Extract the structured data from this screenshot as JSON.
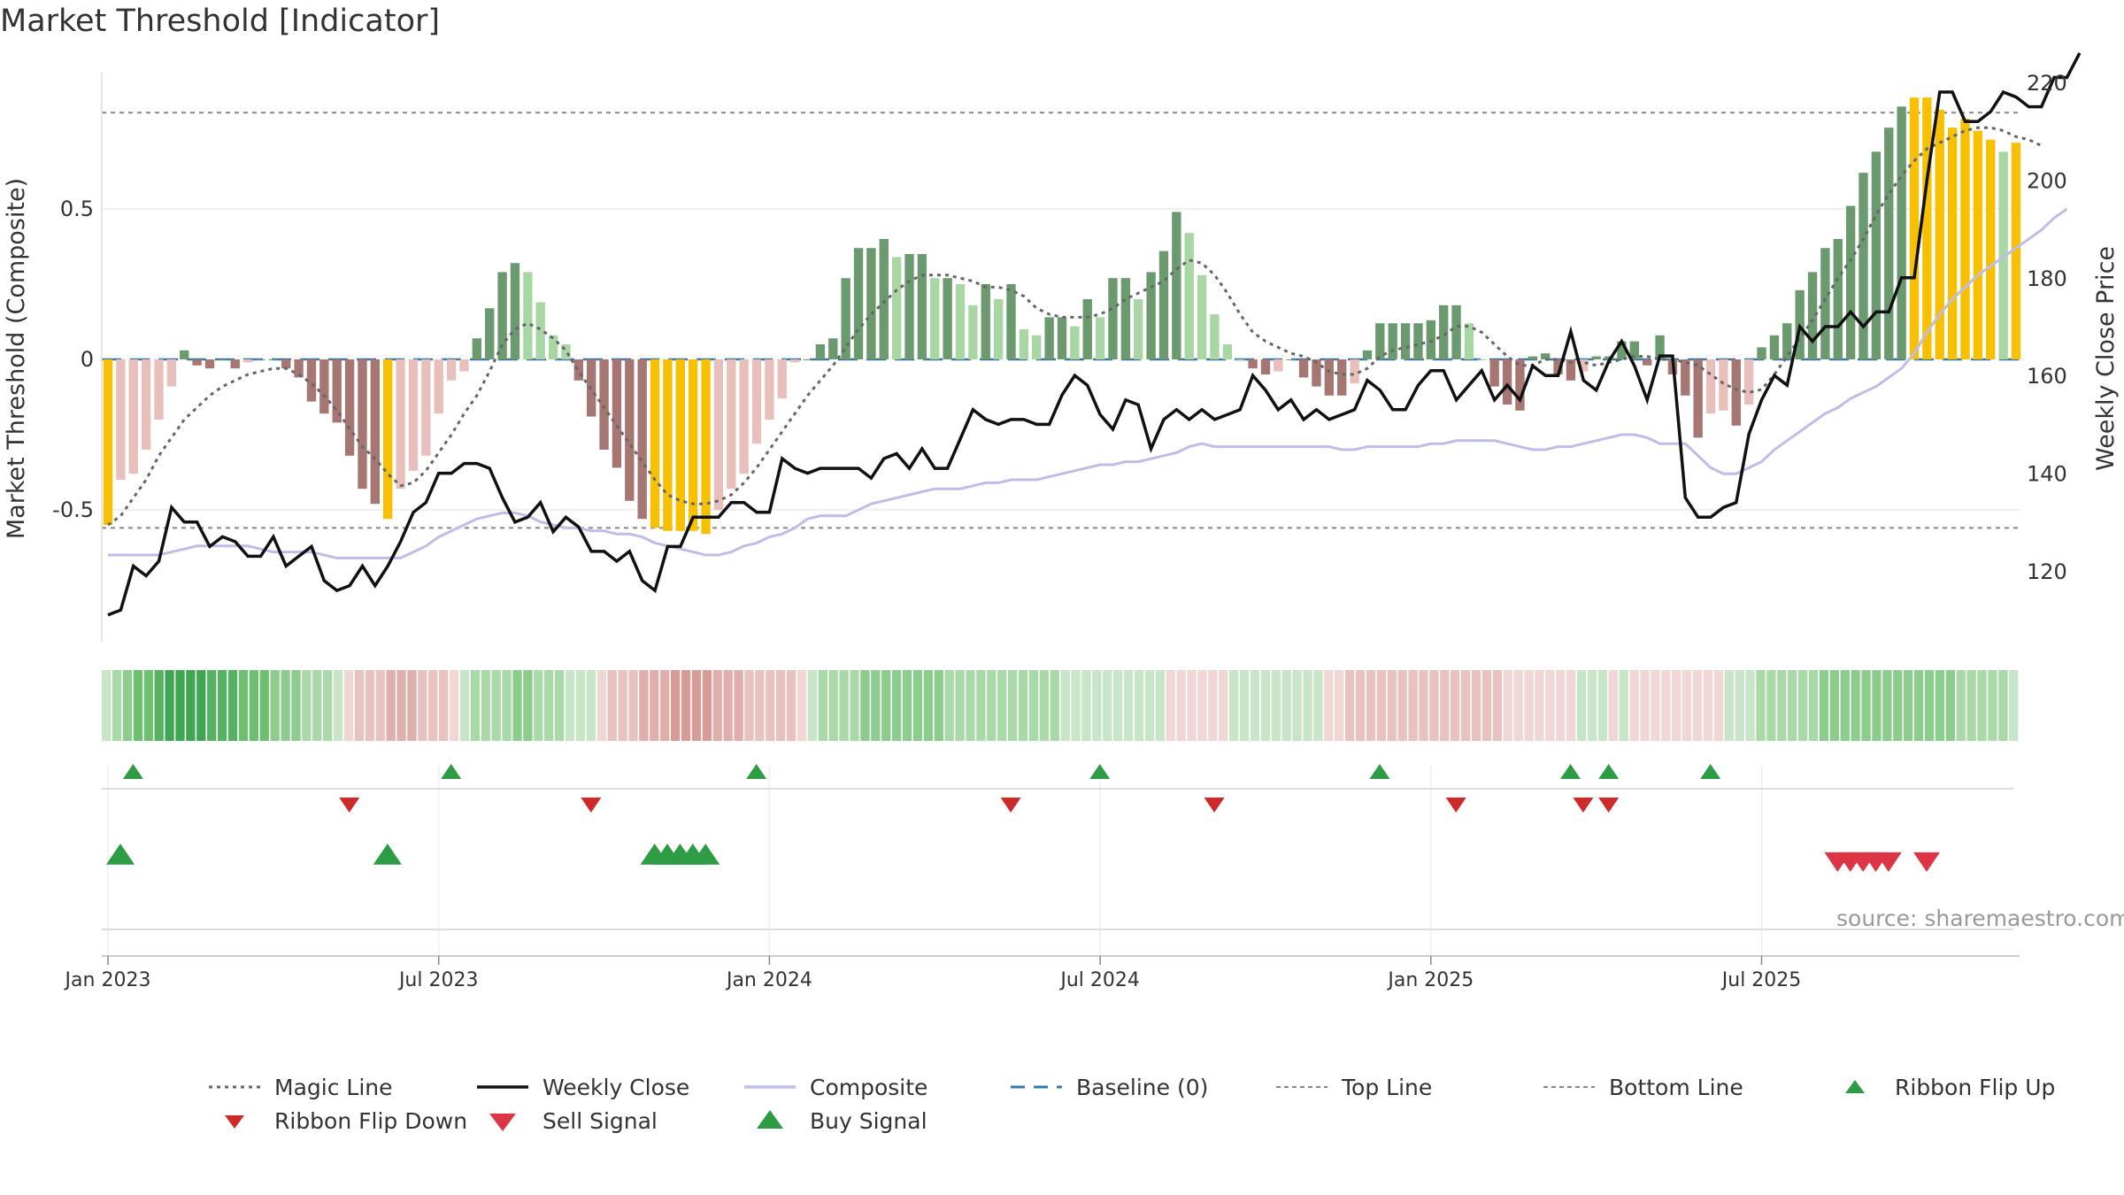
{
  "title": "Market Threshold [Indicator]",
  "source": "source: sharemaestro.com",
  "colors": {
    "bar_dark_green": "#6b9a6f",
    "bar_light_green": "#a9d7a4",
    "bar_dark_red": "#a67672",
    "bar_light_red": "#e9bfbb",
    "bar_yellow": "#f7c000",
    "magic_line": "#666666",
    "weekly_close": "#111111",
    "composite": "#c0bce8",
    "baseline": "#3a78a8",
    "threshold_lines": "#888888",
    "buy_marker": "#2e9b45",
    "sell_marker": "#cf2a2a"
  },
  "chart_data": {
    "type": "bar",
    "x_ticks": [
      "Jan 2023",
      "Jul 2023",
      "Jan 2024",
      "Jul 2024",
      "Jan 2025",
      "Jul 2025"
    ],
    "y_left": {
      "label": "Market Threshold (Composite)",
      "ticks": [
        "-0.5",
        "0",
        "0.5"
      ],
      "range": [
        -0.93,
        0.93
      ]
    },
    "y_right": {
      "label": "Weekly Close Price",
      "ticks": [
        "120",
        "140",
        "160",
        "180",
        "200",
        "220"
      ],
      "range": [
        104,
        222
      ]
    },
    "top_line": 0.82,
    "bottom_line": -0.56,
    "composite_bars": [
      -0.55,
      -0.4,
      -0.38,
      -0.3,
      -0.2,
      -0.09,
      0.03,
      -0.02,
      -0.03,
      0.0,
      -0.03,
      -0.01,
      0.0,
      0.0,
      -0.03,
      -0.06,
      -0.14,
      -0.18,
      -0.21,
      -0.32,
      -0.43,
      -0.48,
      -0.53,
      -0.43,
      -0.37,
      -0.32,
      -0.18,
      -0.07,
      -0.04,
      0.07,
      0.17,
      0.29,
      0.32,
      0.29,
      0.19,
      0.08,
      0.05,
      -0.07,
      -0.19,
      -0.3,
      -0.36,
      -0.47,
      -0.53,
      -0.56,
      -0.57,
      -0.57,
      -0.57,
      -0.58,
      -0.5,
      -0.43,
      -0.38,
      -0.28,
      -0.2,
      -0.13,
      -0.01,
      0.0,
      0.05,
      0.07,
      0.27,
      0.37,
      0.37,
      0.4,
      0.34,
      0.35,
      0.35,
      0.27,
      0.27,
      0.25,
      0.18,
      0.25,
      0.2,
      0.25,
      0.1,
      0.08,
      0.14,
      0.14,
      0.11,
      0.2,
      0.14,
      0.27,
      0.27,
      0.2,
      0.29,
      0.36,
      0.49,
      0.42,
      0.28,
      0.15,
      0.05,
      0.0,
      -0.03,
      -0.05,
      -0.04,
      0.0,
      -0.06,
      -0.09,
      -0.12,
      -0.12,
      -0.08,
      0.03,
      0.12,
      0.12,
      0.12,
      0.12,
      0.13,
      0.18,
      0.18,
      0.12,
      0.0,
      -0.09,
      -0.15,
      -0.17,
      0.01,
      0.02,
      -0.05,
      -0.07,
      -0.04,
      0.01,
      0.01,
      0.06,
      0.06,
      -0.02,
      0.08,
      -0.05,
      -0.12,
      -0.26,
      -0.18,
      -0.17,
      -0.22,
      -0.15,
      0.04,
      0.08,
      0.12,
      0.23,
      0.29,
      0.37,
      0.4,
      0.51,
      0.62,
      0.69,
      0.77,
      0.84,
      0.87,
      0.87,
      0.83,
      0.77,
      0.8,
      0.76,
      0.73,
      0.69,
      0.72
    ],
    "bar_highlight_indices": [
      0,
      22,
      43,
      44,
      45,
      46,
      47,
      142,
      143,
      144,
      145,
      146,
      147,
      148,
      150
    ],
    "weekly_close": [
      111,
      112,
      121,
      119,
      122,
      133,
      130,
      130,
      125,
      127,
      126,
      123,
      123,
      127,
      121,
      123,
      125,
      118,
      116,
      117,
      121,
      117,
      121,
      126,
      132,
      134,
      140,
      140,
      142,
      142,
      141,
      135,
      130,
      131,
      134,
      128,
      131,
      129,
      124,
      124,
      122,
      124,
      118,
      116,
      125,
      125,
      131,
      131,
      131,
      134,
      134,
      132,
      132,
      143,
      141,
      140,
      141,
      141,
      141,
      141,
      139,
      143,
      144,
      141,
      145,
      141,
      141,
      147,
      153,
      151,
      150,
      151,
      151,
      150,
      150,
      156,
      160,
      158,
      152,
      149,
      155,
      154,
      145,
      151,
      153,
      151,
      153,
      151,
      152,
      153,
      160,
      157,
      153,
      155,
      151,
      153,
      151,
      152,
      153,
      159,
      157,
      153,
      153,
      158,
      161,
      161,
      155,
      158,
      161,
      155,
      158,
      155,
      162,
      160,
      160,
      169,
      159,
      157,
      163,
      167,
      162,
      155,
      164,
      164,
      135,
      131,
      131,
      133,
      134,
      148,
      155,
      160,
      158,
      170,
      167,
      170,
      170,
      173,
      170,
      173,
      173,
      180,
      180,
      200,
      218,
      218,
      212,
      212,
      214,
      218,
      217,
      215,
      215,
      221,
      221,
      226
    ],
    "magic_line": [
      -0.55,
      -0.52,
      -0.46,
      -0.4,
      -0.32,
      -0.26,
      -0.2,
      -0.16,
      -0.12,
      -0.09,
      -0.07,
      -0.05,
      -0.04,
      -0.03,
      -0.03,
      -0.05,
      -0.08,
      -0.12,
      -0.17,
      -0.23,
      -0.29,
      -0.33,
      -0.38,
      -0.42,
      -0.41,
      -0.37,
      -0.31,
      -0.25,
      -0.18,
      -0.12,
      -0.04,
      0.05,
      0.1,
      0.12,
      0.1,
      0.07,
      0.03,
      -0.04,
      -0.1,
      -0.16,
      -0.22,
      -0.28,
      -0.34,
      -0.4,
      -0.45,
      -0.47,
      -0.48,
      -0.48,
      -0.47,
      -0.45,
      -0.41,
      -0.36,
      -0.3,
      -0.24,
      -0.18,
      -0.12,
      -0.07,
      -0.02,
      0.04,
      0.1,
      0.15,
      0.19,
      0.23,
      0.26,
      0.28,
      0.28,
      0.28,
      0.27,
      0.26,
      0.24,
      0.24,
      0.23,
      0.21,
      0.17,
      0.15,
      0.14,
      0.14,
      0.14,
      0.15,
      0.17,
      0.2,
      0.22,
      0.24,
      0.26,
      0.3,
      0.33,
      0.32,
      0.28,
      0.22,
      0.15,
      0.09,
      0.06,
      0.04,
      0.02,
      0.01,
      -0.01,
      -0.04,
      -0.05,
      -0.05,
      -0.03,
      0.01,
      0.03,
      0.04,
      0.05,
      0.06,
      0.08,
      0.11,
      0.11,
      0.09,
      0.05,
      0.01,
      -0.02,
      -0.02,
      0.0,
      0.0,
      -0.01,
      -0.01,
      -0.02,
      -0.01,
      0.0,
      0.01,
      0.01,
      0.0,
      0.0,
      -0.01,
      -0.02,
      -0.05,
      -0.08,
      -0.1,
      -0.11,
      -0.1,
      -0.05,
      0.01,
      0.07,
      0.13,
      0.2,
      0.27,
      0.33,
      0.4,
      0.48,
      0.55,
      0.61,
      0.66,
      0.7,
      0.72,
      0.74,
      0.76,
      0.77,
      0.77,
      0.76,
      0.74,
      0.73,
      0.71
    ],
    "composite_line": [
      -0.65,
      -0.65,
      -0.65,
      -0.65,
      -0.65,
      -0.64,
      -0.63,
      -0.62,
      -0.62,
      -0.62,
      -0.62,
      -0.62,
      -0.63,
      -0.64,
      -0.64,
      -0.64,
      -0.64,
      -0.65,
      -0.66,
      -0.66,
      -0.66,
      -0.66,
      -0.66,
      -0.66,
      -0.64,
      -0.62,
      -0.59,
      -0.57,
      -0.55,
      -0.53,
      -0.52,
      -0.51,
      -0.51,
      -0.52,
      -0.54,
      -0.55,
      -0.56,
      -0.56,
      -0.57,
      -0.57,
      -0.58,
      -0.58,
      -0.59,
      -0.61,
      -0.62,
      -0.63,
      -0.64,
      -0.65,
      -0.65,
      -0.64,
      -0.62,
      -0.61,
      -0.59,
      -0.58,
      -0.56,
      -0.53,
      -0.52,
      -0.52,
      -0.52,
      -0.5,
      -0.48,
      -0.47,
      -0.46,
      -0.45,
      -0.44,
      -0.43,
      -0.43,
      -0.43,
      -0.42,
      -0.41,
      -0.41,
      -0.4,
      -0.4,
      -0.4,
      -0.39,
      -0.38,
      -0.37,
      -0.36,
      -0.35,
      -0.35,
      -0.34,
      -0.34,
      -0.33,
      -0.32,
      -0.31,
      -0.29,
      -0.28,
      -0.29,
      -0.29,
      -0.29,
      -0.29,
      -0.29,
      -0.29,
      -0.29,
      -0.29,
      -0.29,
      -0.29,
      -0.3,
      -0.3,
      -0.29,
      -0.29,
      -0.29,
      -0.29,
      -0.29,
      -0.28,
      -0.28,
      -0.27,
      -0.27,
      -0.27,
      -0.27,
      -0.28,
      -0.29,
      -0.3,
      -0.3,
      -0.29,
      -0.29,
      -0.28,
      -0.27,
      -0.26,
      -0.25,
      -0.25,
      -0.26,
      -0.28,
      -0.28,
      -0.28,
      -0.32,
      -0.36,
      -0.38,
      -0.38,
      -0.36,
      -0.34,
      -0.3,
      -0.27,
      -0.24,
      -0.21,
      -0.18,
      -0.16,
      -0.13,
      -0.11,
      -0.09,
      -0.06,
      -0.03,
      0.02,
      0.09,
      0.15,
      0.2,
      0.24,
      0.28,
      0.31,
      0.34,
      0.37,
      0.4,
      0.43,
      0.47,
      0.5
    ],
    "ribbon": [
      1,
      2,
      3,
      4,
      4,
      5,
      6,
      6,
      6,
      6,
      5,
      5,
      5,
      4,
      4,
      4,
      3,
      3,
      3,
      2,
      2,
      2,
      1,
      -1,
      -2,
      -2,
      -2,
      -3,
      -3,
      -3,
      -2,
      -2,
      -2,
      -1,
      1,
      2,
      2,
      2,
      2,
      3,
      3,
      2,
      2,
      2,
      1,
      1,
      1,
      -1,
      -2,
      -2,
      -2,
      -3,
      -3,
      -3,
      -4,
      -4,
      -4,
      -4,
      -3,
      -3,
      -3,
      -2,
      -2,
      -2,
      -2,
      -2,
      -1,
      1,
      2,
      2,
      2,
      2,
      3,
      3,
      3,
      3,
      3,
      3,
      3,
      3,
      2,
      2,
      2,
      2,
      2,
      2,
      2,
      2,
      2,
      2,
      2,
      1,
      1,
      1,
      1,
      1,
      1,
      1,
      1,
      1,
      1,
      -1,
      -1,
      -1,
      -1,
      -1,
      -1,
      1,
      1,
      1,
      1,
      1,
      1,
      1,
      1,
      1,
      -1,
      -1,
      -2,
      -2,
      -2,
      -2,
      -2,
      -2,
      -2,
      -2,
      -2,
      -2,
      -2,
      -2,
      -2,
      -2,
      -2,
      -1,
      -1,
      -1,
      -1,
      -1,
      -1,
      -1,
      1,
      1,
      1,
      -1,
      1,
      -1,
      -1,
      -1,
      -1,
      -1,
      -1,
      -1,
      -1,
      -1,
      1,
      1,
      1,
      2,
      2,
      2,
      2,
      2,
      2,
      3,
      3,
      3,
      3,
      3,
      3,
      3,
      3,
      3,
      3,
      3,
      3,
      3,
      2,
      2,
      2,
      2,
      2,
      1
    ],
    "ribbon_flip_up_weeks": [
      1,
      26,
      50,
      77,
      99,
      114,
      117,
      125
    ],
    "ribbon_flip_down_weeks": [
      18,
      37,
      70,
      86,
      105,
      115,
      117
    ],
    "buy_signal_weeks": [
      0,
      21,
      42,
      43,
      44,
      45,
      46
    ],
    "sell_signal_weeks": [
      135,
      136,
      137,
      138,
      139,
      142
    ],
    "legend": [
      {
        "label": "Magic Line",
        "swatch": "dotted-line"
      },
      {
        "label": "Weekly Close",
        "swatch": "solid-black-line"
      },
      {
        "label": "Composite",
        "swatch": "lavender-line"
      },
      {
        "label": "Baseline (0)",
        "swatch": "dashed-blue-line"
      },
      {
        "label": "Top Line",
        "swatch": "thin-dotted-line"
      },
      {
        "label": "Bottom Line",
        "swatch": "thin-dotted-line"
      },
      {
        "label": "Ribbon Flip Up",
        "swatch": "green-up-triangle"
      },
      {
        "label": "Ribbon Flip Down",
        "swatch": "red-down-triangle"
      },
      {
        "label": "Sell Signal",
        "swatch": "red-down-triangle-large"
      },
      {
        "label": "Buy Signal",
        "swatch": "green-up-triangle-large"
      }
    ]
  }
}
